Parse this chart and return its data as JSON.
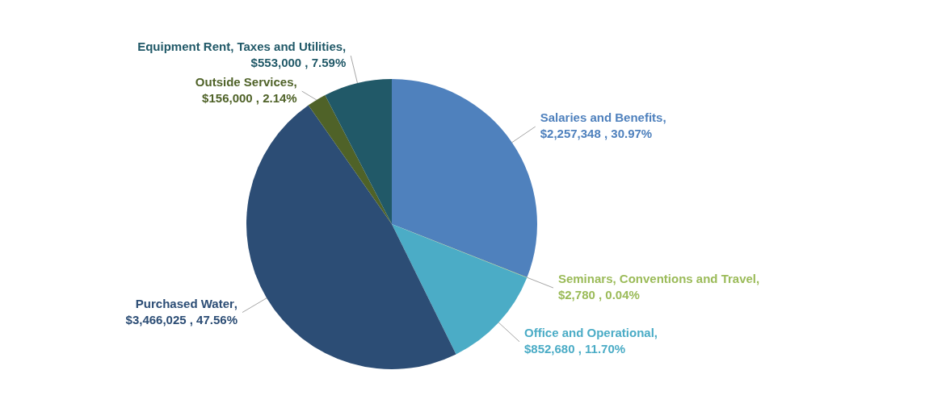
{
  "chart_data": {
    "type": "pie",
    "categories": [
      "Salaries and Benefits",
      "Seminars, Conventions and Travel",
      "Office and Operational",
      "Purchased Water",
      "Outside Services",
      "Equipment Rent, Taxes and Utilities"
    ],
    "values": [
      2257348,
      2780,
      852680,
      3466025,
      156000,
      553000
    ],
    "value_labels": [
      ", $2,257,348 , 30.97%",
      ", $2,780 , 0.04%",
      ", $852,680 , 11.70%",
      ", $3,466,025 , 47.56%",
      ", $156,000 , 2.14%",
      ", $553,000 , 7.59%"
    ],
    "colors": [
      "#4f81bd",
      "#9bbb59",
      "#4bacc6",
      "#2c4d75",
      "#4f6228",
      "#215968"
    ]
  }
}
